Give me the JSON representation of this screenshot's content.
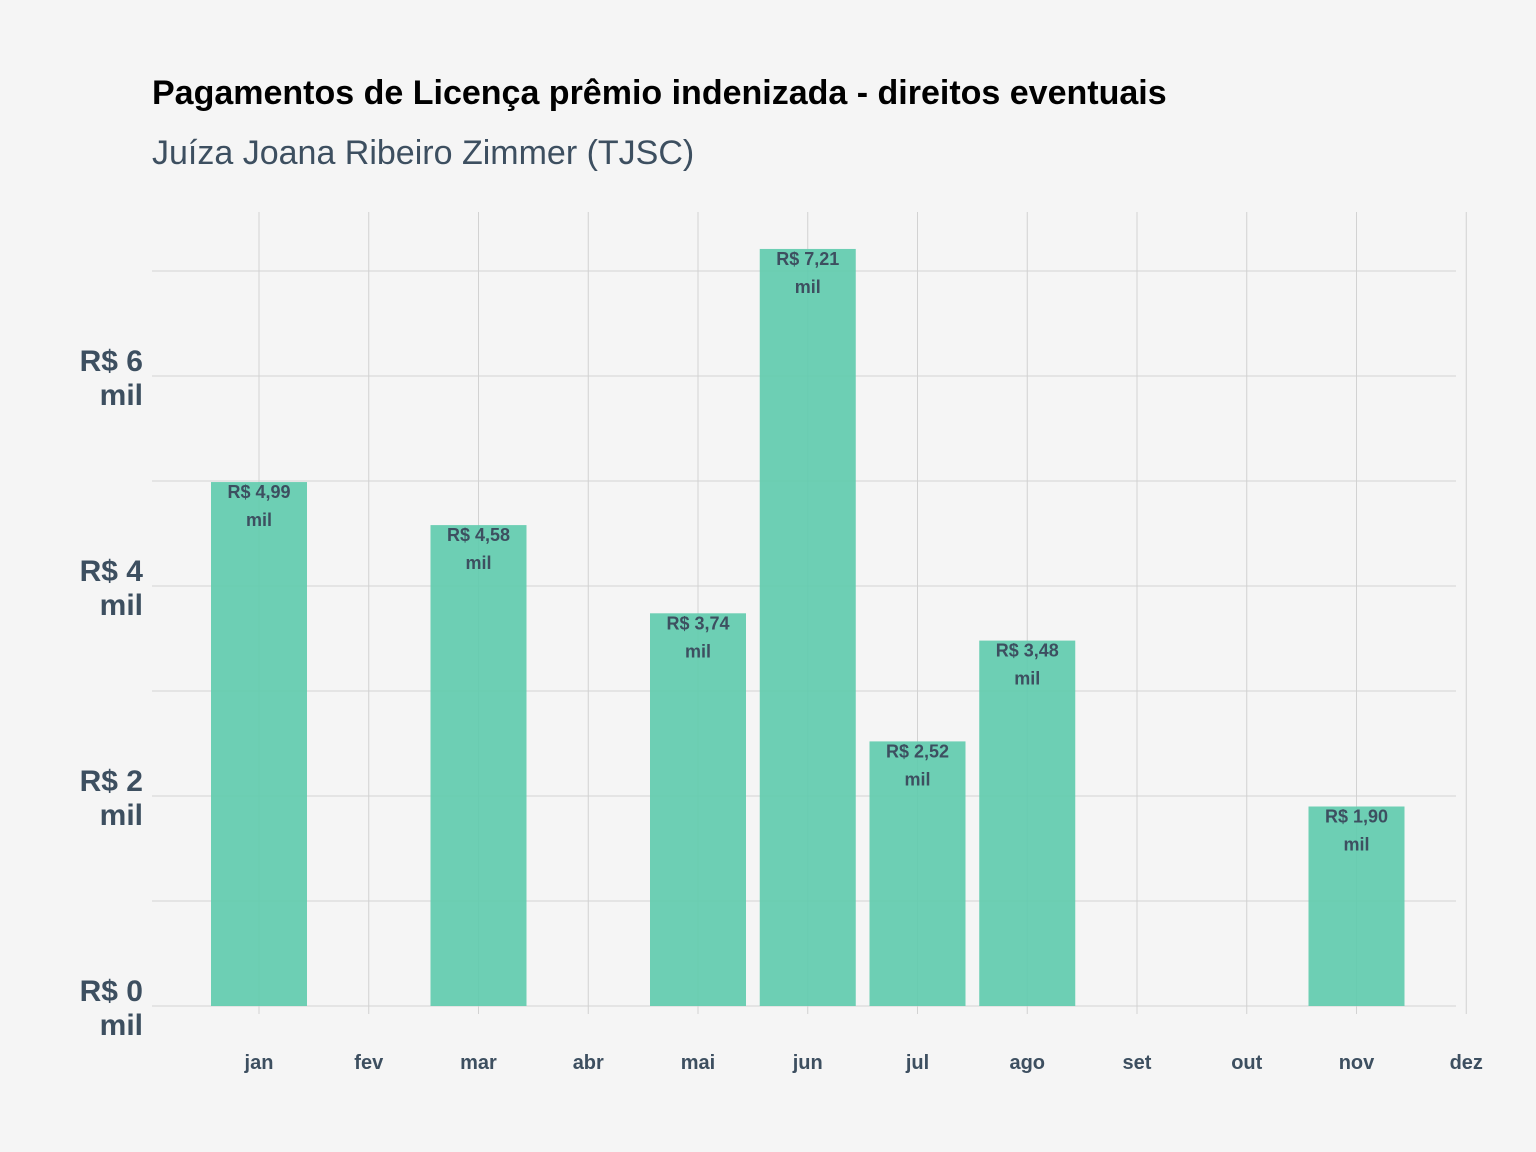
{
  "chart_data": {
    "type": "bar",
    "title": "Pagamentos de Licença prêmio indenizada - direitos eventuais",
    "subtitle": "Juíza Joana Ribeiro Zimmer (TJSC)",
    "categories": [
      "jan",
      "fev",
      "mar",
      "abr",
      "mai",
      "jun",
      "jul",
      "ago",
      "set",
      "out",
      "nov",
      "dez"
    ],
    "bars": [
      {
        "month": "jan",
        "value": 4.99,
        "label": [
          "R$ 4,99",
          "mil"
        ]
      },
      {
        "month": "mar",
        "value": 4.58,
        "label": [
          "R$ 4,58",
          "mil"
        ]
      },
      {
        "month": "mai",
        "value": 3.74,
        "label": [
          "R$ 3,74",
          "mil"
        ]
      },
      {
        "month": "jun",
        "value": 7.21,
        "label": [
          "R$ 7,21",
          "mil"
        ]
      },
      {
        "month": "jul",
        "value": 2.52,
        "label": [
          "R$ 2,52",
          "mil"
        ]
      },
      {
        "month": "ago",
        "value": 3.48,
        "label": [
          "R$ 3,48",
          "mil"
        ]
      },
      {
        "month": "nov",
        "value": 1.9,
        "label": [
          "R$ 1,90",
          "mil"
        ]
      }
    ],
    "y_ticks": [
      {
        "value": 0,
        "label": [
          "R$ 0",
          "mil"
        ]
      },
      {
        "value": 2,
        "label": [
          "R$ 2",
          "mil"
        ]
      },
      {
        "value": 4,
        "label": [
          "R$ 4",
          "mil"
        ]
      },
      {
        "value": 6,
        "label": [
          "R$ 6",
          "mil"
        ]
      }
    ],
    "xlabel": "",
    "ylabel": "",
    "ylim": [
      0,
      7.55
    ],
    "grid": true,
    "legend": "none",
    "colors": {
      "bar": "#5ecbad",
      "label": "#3d4f60",
      "background": "#f5f5f5",
      "grid": "#d2d2d2"
    }
  }
}
